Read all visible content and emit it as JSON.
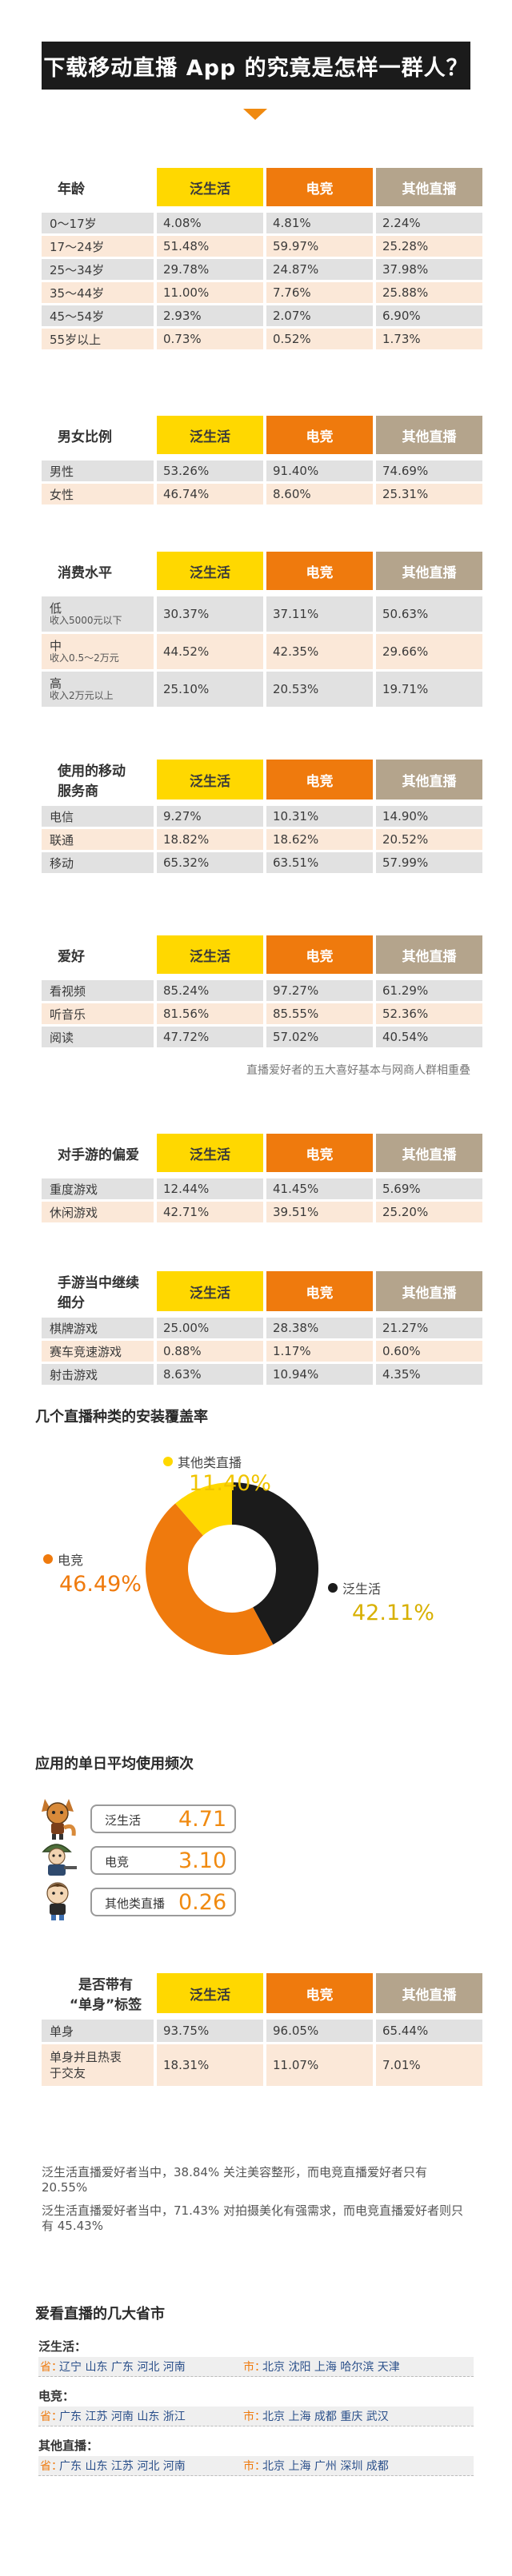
{
  "title": "下载移动直播 App 的究竟是怎样一群人？",
  "platforms": [
    "泛生活",
    "电竞",
    "其他直播"
  ],
  "colors": {
    "pan": "#ffd800",
    "esports": "#ef7a0d",
    "other": "#b4a48c",
    "dark": "#1b1b1b"
  },
  "tables": [
    {
      "label": "年龄",
      "rows": [
        {
          "name": "0～17岁",
          "values": [
            "4.08%",
            "4.81%",
            "2.24%"
          ]
        },
        {
          "name": "17～24岁",
          "values": [
            "51.48%",
            "59.97%",
            "25.28%"
          ]
        },
        {
          "name": "25～34岁",
          "values": [
            "29.78%",
            "24.87%",
            "37.98%"
          ]
        },
        {
          "name": "35～44岁",
          "values": [
            "11.00%",
            "7.76%",
            "25.88%"
          ]
        },
        {
          "name": "45～54岁",
          "values": [
            "2.93%",
            "2.07%",
            "6.90%"
          ]
        },
        {
          "name": "55岁以上",
          "values": [
            "0.73%",
            "0.52%",
            "1.73%"
          ]
        }
      ]
    },
    {
      "label": "男女比例",
      "rows": [
        {
          "name": "男性",
          "values": [
            "53.26%",
            "91.40%",
            "74.69%"
          ]
        },
        {
          "name": "女性",
          "values": [
            "46.74%",
            "8.60%",
            "25.31%"
          ]
        }
      ]
    },
    {
      "label": "消费水平",
      "rows": [
        {
          "name": "低",
          "sub": "收入5000元以下",
          "values": [
            "30.37%",
            "37.11%",
            "50.63%"
          ]
        },
        {
          "name": "中",
          "sub": "收入0.5～2万元",
          "values": [
            "44.52%",
            "42.35%",
            "29.66%"
          ]
        },
        {
          "name": "高",
          "sub": "收入2万元以上",
          "values": [
            "25.10%",
            "20.53%",
            "19.71%"
          ]
        }
      ]
    },
    {
      "label": "使用的移动服务商",
      "label_lines": [
        "使用的移动",
        "服务商"
      ],
      "rows": [
        {
          "name": "电信",
          "values": [
            "9.27%",
            "10.31%",
            "14.90%"
          ]
        },
        {
          "name": "联通",
          "values": [
            "18.82%",
            "18.62%",
            "20.52%"
          ]
        },
        {
          "name": "移动",
          "values": [
            "65.32%",
            "63.51%",
            "57.99%"
          ]
        }
      ]
    },
    {
      "label": "爱好",
      "rows": [
        {
          "name": "看视频",
          "values": [
            "85.24%",
            "97.27%",
            "61.29%"
          ]
        },
        {
          "name": "听音乐",
          "values": [
            "81.56%",
            "85.55%",
            "52.36%"
          ]
        },
        {
          "name": "阅读",
          "values": [
            "47.72%",
            "57.02%",
            "40.54%"
          ]
        }
      ],
      "note": "直播爱好者的五大喜好基本与网商人群相重叠"
    },
    {
      "label": "对手游的偏爱",
      "rows": [
        {
          "name": "重度游戏",
          "values": [
            "12.44%",
            "41.45%",
            "5.69%"
          ]
        },
        {
          "name": "休闲游戏",
          "values": [
            "42.71%",
            "39.51%",
            "25.20%"
          ]
        }
      ]
    },
    {
      "label": "手游当中继续细分",
      "label_lines": [
        "手游当中继续",
        "细分"
      ],
      "rows": [
        {
          "name": "棋牌游戏",
          "values": [
            "25.00%",
            "28.38%",
            "21.27%"
          ]
        },
        {
          "name": "赛车竞速游戏",
          "values": [
            "0.88%",
            "1.17%",
            "0.60%"
          ]
        },
        {
          "name": "射击游戏",
          "values": [
            "8.63%",
            "10.94%",
            "4.35%"
          ]
        }
      ]
    }
  ],
  "chart_data": [
    {
      "type": "pie",
      "title": "几个直播种类的安装覆盖率",
      "categories": [
        "泛生活",
        "电竞",
        "其他类直播"
      ],
      "values": [
        42.11,
        46.49,
        11.4
      ],
      "labels": [
        "42.11%",
        "46.49%",
        "11.40%"
      ],
      "colors": [
        "#1b1b1b",
        "#ef7a0d",
        "#ffd800"
      ],
      "variant": "donut"
    }
  ],
  "frequency": {
    "title": "应用的单日平均使用频次",
    "items": [
      {
        "label": "泛生活",
        "value": "4.71"
      },
      {
        "label": "电竞",
        "value": "3.10"
      },
      {
        "label": "其他类直播",
        "value": "0.26"
      }
    ]
  },
  "single": {
    "label_lines": [
      "是否带有",
      "“单身”标签"
    ],
    "rows": [
      {
        "name": "单身",
        "values": [
          "93.75%",
          "96.05%",
          "65.44%"
        ]
      },
      {
        "name": "单身并且热衷于交友",
        "name_lines": [
          "单身并且热衷",
          "于交友"
        ],
        "values": [
          "18.31%",
          "11.07%",
          "7.01%"
        ]
      }
    ]
  },
  "paragraphs": [
    "泛生活直播爱好者当中，38.84% 关注美容整形，而电竞直播爱好者只有 20.55%",
    "泛生活直播爱好者当中，71.43% 对拍摄美化有强需求，而电竞直播爱好者则只有 45.43%"
  ],
  "cities": {
    "title": "爱看直播的几大省市",
    "province_key": "省：",
    "city_key": "市：",
    "groups": [
      {
        "name": "泛生活：",
        "provinces": "辽宁  山东  广东  河北  河南",
        "cities": "北京  沈阳  上海  哈尔滨  天津"
      },
      {
        "name": "电竞：",
        "provinces": "广东  江苏  河南  山东  浙江",
        "cities": "北京  上海  成都  重庆  武汉"
      },
      {
        "name": "其他直播：",
        "provinces": "广东  山东  江苏  河北  河南",
        "cities": "北京  上海  广州  深圳  成都"
      }
    ]
  }
}
